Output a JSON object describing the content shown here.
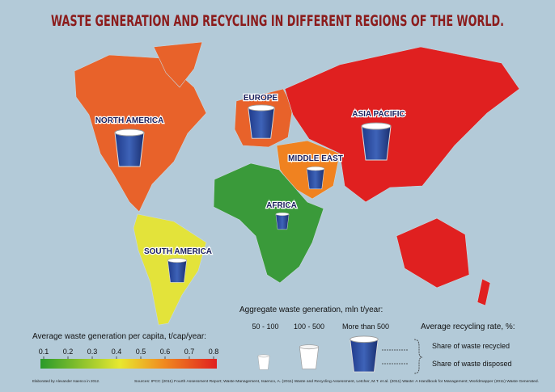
{
  "title": "WASTE GENERATION AND RECYCLING IN DIFFERENT REGIONS OF THE WORLD.",
  "regions": [
    "NORTH AMERICA",
    "EUROPE",
    "ASIA PACIFIC",
    "MIDDLE EAST",
    "AFRICA",
    "SOUTH AMERICA"
  ],
  "per_capita_legend": {
    "title": "Average waste generation per capita, t/cap/year:",
    "ticks": [
      0.1,
      0.2,
      0.3,
      0.4,
      0.5,
      0.6,
      0.7,
      0.8
    ]
  },
  "aggregate_legend": {
    "title": "Aggregate waste generation, mln t/year:",
    "classes": [
      "50 - 100",
      "100 - 500",
      "More than 500"
    ]
  },
  "recycling_legend": {
    "title": "Average recycling rate, %:",
    "recycled": "Share of waste recycled",
    "disposed": "Share of waste disposed"
  },
  "credit": "Elaborated by Alexander Isaenco in 2012.",
  "sources": "Sources: IPCC (2011) Fourth Assessment Report; Waste Management, Isaenco, A. (2011) Waste and Recycling Assessment, Letcher, M.T. et al. (2011) Waste: A Handbook for Management; Worldmapper (2011) Waste Generated."
}
